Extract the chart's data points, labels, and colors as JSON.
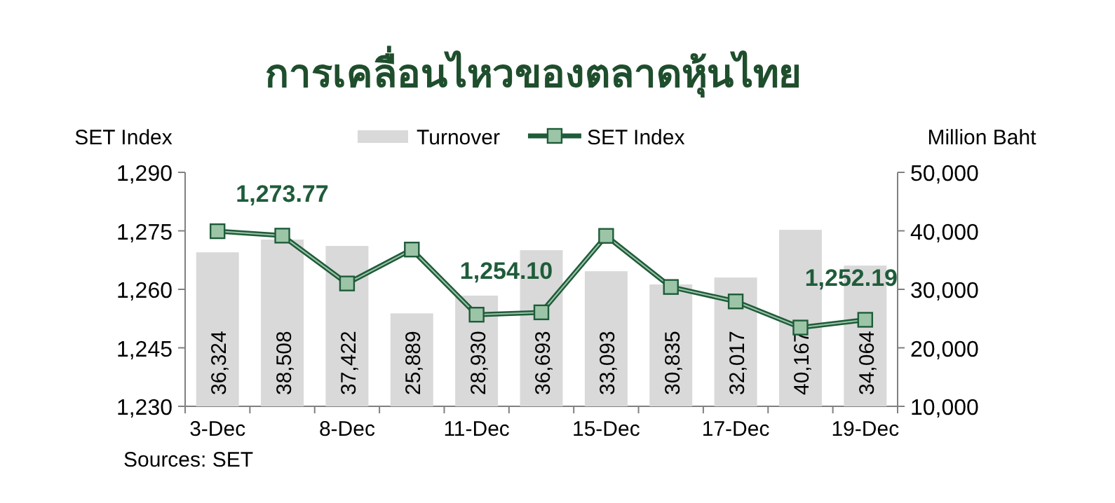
{
  "chart_data": {
    "type": "bar",
    "title": "การเคลื่อนไหวของตลาดหุ้นไทย",
    "ylabel": "SET Index",
    "y2label": "Million Baht",
    "annotations": [
      "Sources: SET"
    ],
    "categories": [
      "3-Dec",
      null,
      "8-Dec",
      null,
      "11-Dec",
      null,
      "15-Dec",
      null,
      "17-Dec",
      null,
      "19-Dec"
    ],
    "series": [
      {
        "name": "Turnover",
        "axis": "y2",
        "color": "#d9d9d9",
        "values": [
          36324,
          38508,
          37422,
          25889,
          28930,
          36693,
          33093,
          30835,
          32017,
          40167,
          34064
        ],
        "value_labels": [
          "36,324",
          "38,508",
          "37,422",
          "25,889",
          "28,930",
          "36,693",
          "33,093",
          "30,835",
          "32,017",
          "40,167",
          "34,064"
        ]
      },
      {
        "name": "SET Index",
        "type": "line",
        "color": "#1f5c3a",
        "marker": "square",
        "values": [
          1274.9,
          1273.77,
          1261.5,
          1270.2,
          1253.5,
          1254.1,
          1273.7,
          1260.6,
          1256.9,
          1250.2,
          1252.19
        ],
        "value_labels": [
          null,
          "1,273.77",
          null,
          null,
          null,
          "1,254.10",
          null,
          null,
          null,
          null,
          "1,252.19"
        ]
      }
    ],
    "ylim": [
      1230,
      1290
    ],
    "yticks": [
      {
        "value": 1230,
        "label": "1,230"
      },
      {
        "value": 1245,
        "label": "1,245"
      },
      {
        "value": 1260,
        "label": "1,260"
      },
      {
        "value": 1275,
        "label": "1,275"
      },
      {
        "value": 1290,
        "label": "1,290"
      }
    ],
    "y2lim": [
      10000,
      50000
    ],
    "y2ticks": [
      {
        "value": 10000,
        "label": "10,000"
      },
      {
        "value": 20000,
        "label": "20,000"
      },
      {
        "value": 30000,
        "label": "30,000"
      },
      {
        "value": 40000,
        "label": "40,000"
      },
      {
        "value": 50000,
        "label": "50,000"
      }
    ],
    "legend": "top",
    "grid": false
  }
}
